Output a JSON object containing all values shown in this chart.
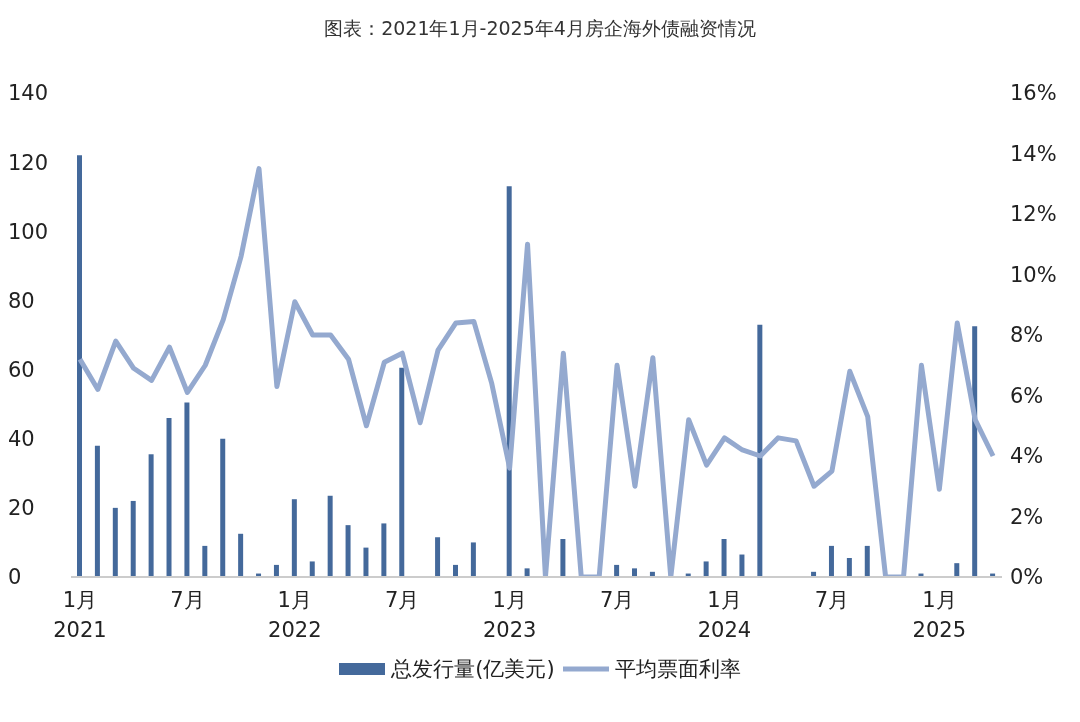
{
  "chart_data": {
    "type": "bar",
    "title": "图表：2021年1月-2025年4月房企海外债融资情况",
    "categories": [
      "1月\n2021",
      null,
      null,
      null,
      null,
      null,
      "7月",
      null,
      null,
      null,
      null,
      null,
      "1月\n2022",
      null,
      null,
      null,
      null,
      null,
      "7月",
      null,
      null,
      null,
      null,
      null,
      "1月\n2023",
      null,
      null,
      null,
      null,
      null,
      "7月",
      null,
      null,
      null,
      null,
      null,
      "1月\n2024",
      null,
      null,
      null,
      null,
      null,
      "7月",
      null,
      null,
      null,
      null,
      null,
      "1月\n2025",
      null,
      null,
      null
    ],
    "series": [
      {
        "name": "总发行量(亿美元)",
        "color": "#44699b",
        "values": [
          122,
          38,
          20,
          22,
          35.5,
          46,
          50.5,
          9,
          40,
          12.5,
          1,
          3.5,
          22.5,
          4.5,
          23.5,
          15,
          8.5,
          15.5,
          60.5,
          0,
          11.5,
          3.5,
          10,
          0,
          113,
          2.5,
          0,
          11,
          0,
          0,
          3.5,
          2.5,
          1.5,
          0,
          1,
          4.5,
          11,
          6.5,
          73,
          0,
          0,
          1.5,
          9,
          5.5,
          9,
          0,
          0,
          1,
          0,
          4,
          72.5,
          1
        ]
      },
      {
        "name": "平均票面利率",
        "type": "line",
        "axis": "y2",
        "color": "#94a9cf",
        "values": [
          7.2,
          6.2,
          7.8,
          6.9,
          6.5,
          7.6,
          6.1,
          7.0,
          8.5,
          10.6,
          13.5,
          6.3,
          9.1,
          8.0,
          8.0,
          7.2,
          5.0,
          7.1,
          7.4,
          5.1,
          7.5,
          8.4,
          8.45,
          6.4,
          3.6,
          11.0,
          0,
          7.4,
          0,
          0,
          7.0,
          3.0,
          7.25,
          0,
          5.2,
          3.7,
          4.6,
          4.2,
          4.0,
          4.6,
          4.5,
          3.0,
          3.5,
          6.8,
          5.3,
          0,
          0,
          7.0,
          2.9,
          8.4,
          5.2,
          4.0
        ]
      }
    ],
    "ylim": [
      0,
      140
    ],
    "yticks": [
      0,
      20,
      40,
      60,
      80,
      100,
      120,
      140
    ],
    "y2lim": [
      0,
      16
    ],
    "y2ticks": [
      {
        "value": 0,
        "label": "0%"
      },
      {
        "value": 2,
        "label": "2%"
      },
      {
        "value": 4,
        "label": "4%"
      },
      {
        "value": 6,
        "label": "6%"
      },
      {
        "value": 8,
        "label": "8%"
      },
      {
        "value": 10,
        "label": "10%"
      },
      {
        "value": 12,
        "label": "12%"
      },
      {
        "value": 14,
        "label": "14%"
      },
      {
        "value": 16,
        "label": "16%"
      }
    ],
    "legend": "bottom",
    "marker": "none"
  }
}
